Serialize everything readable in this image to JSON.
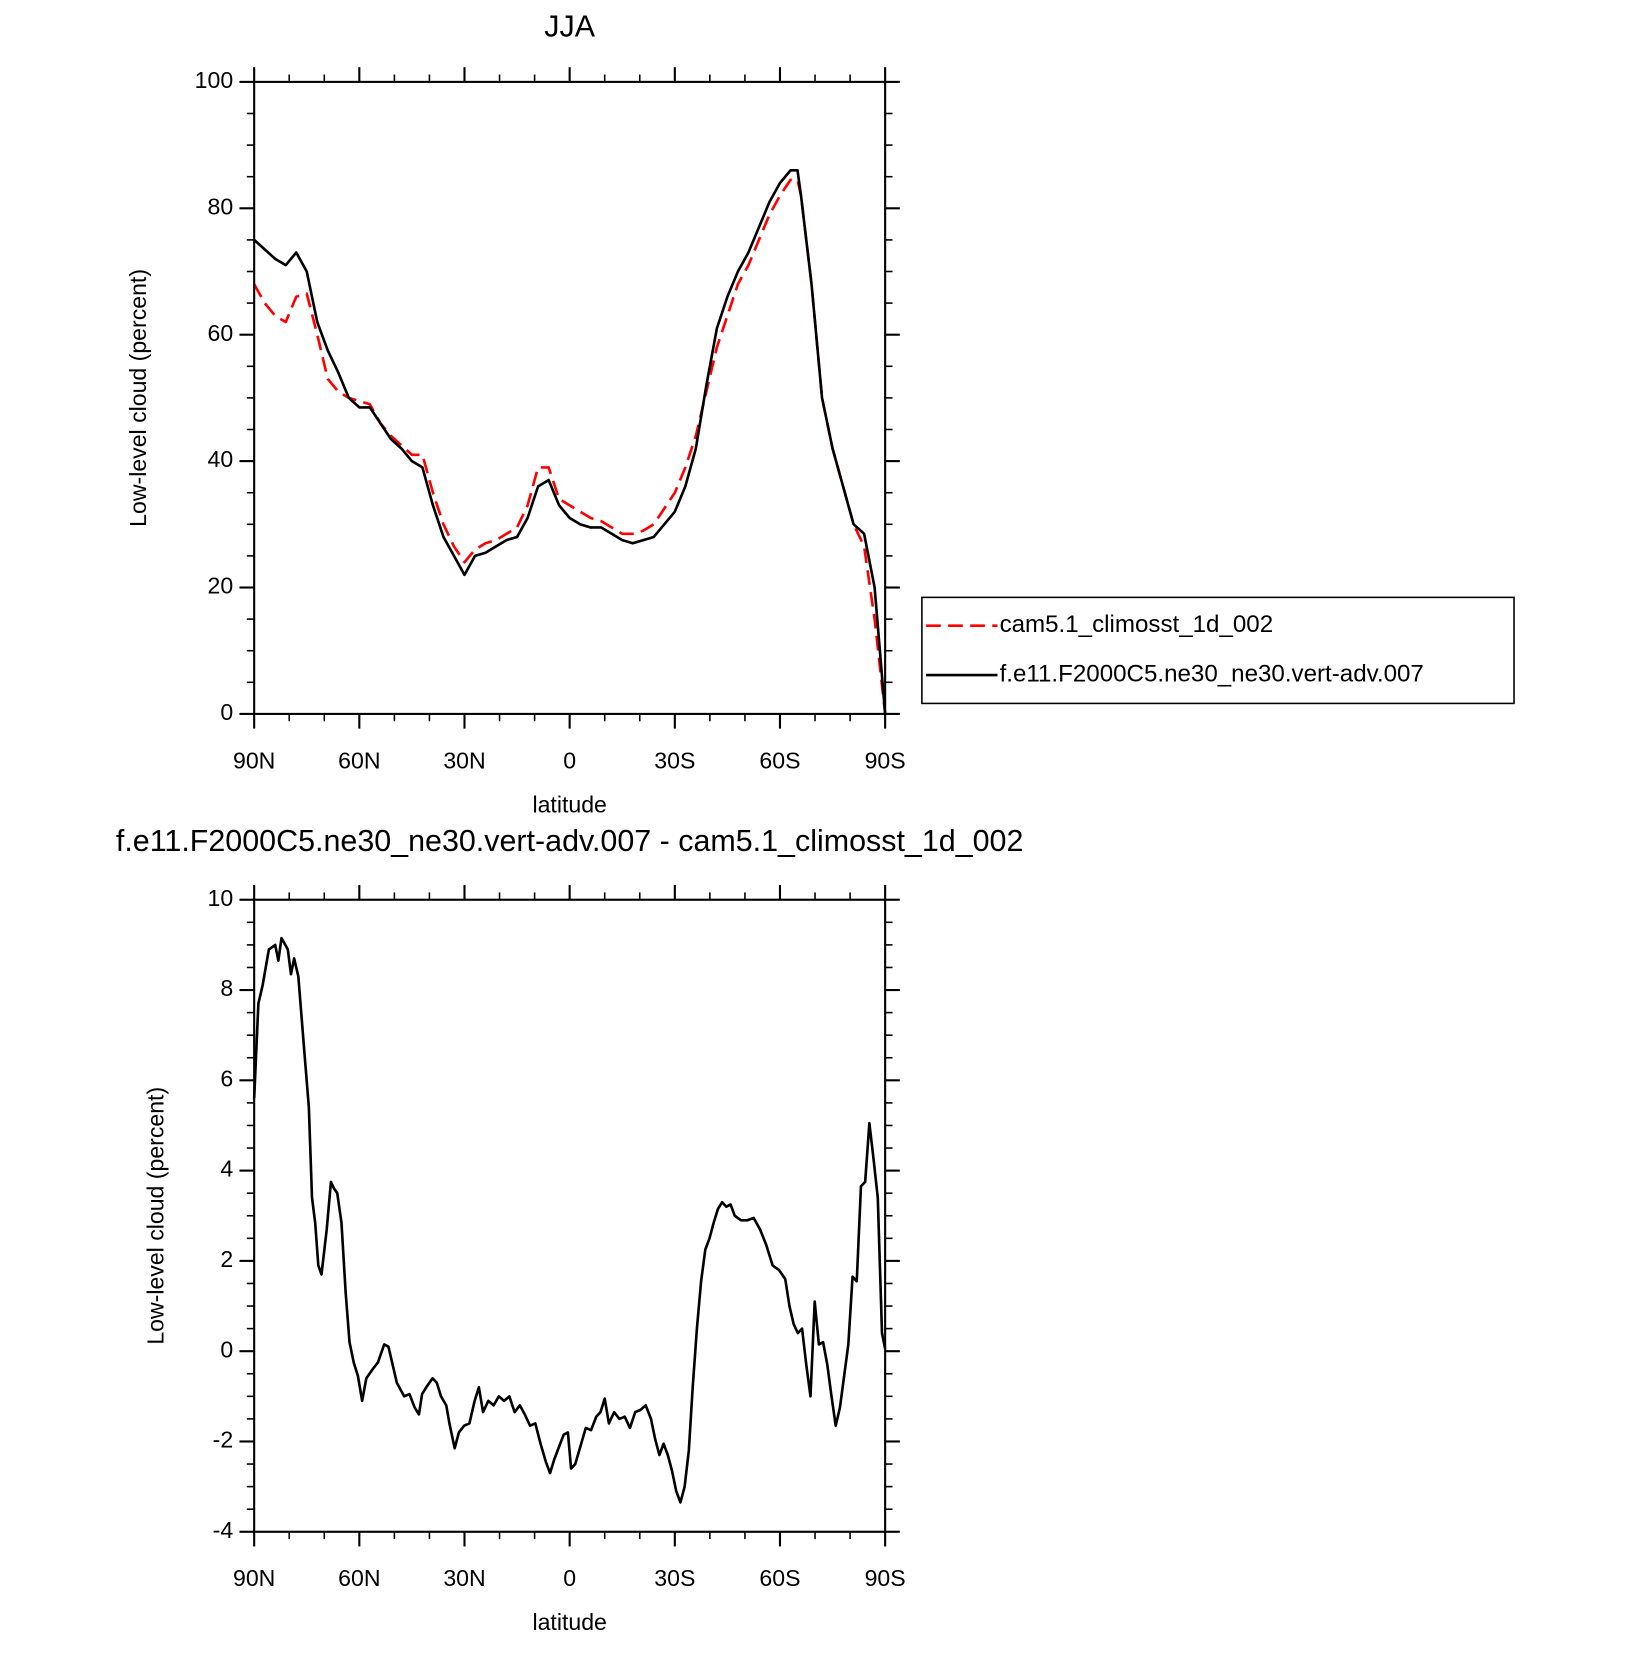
{
  "chart_data": [
    {
      "type": "line",
      "title": "JJA",
      "xlabel": "latitude",
      "ylabel": "Low-level cloud (percent)",
      "xlim": [
        90,
        -90
      ],
      "xticks": [
        {
          "value": 90,
          "label": "90N"
        },
        {
          "value": 60,
          "label": "60N"
        },
        {
          "value": 30,
          "label": "30N"
        },
        0,
        {
          "value": -30,
          "label": "30S"
        },
        {
          "value": -60,
          "label": "60S"
        },
        {
          "value": -90,
          "label": "90S"
        }
      ],
      "ylim": [
        0,
        100
      ],
      "yticks": [
        0,
        20,
        40,
        60,
        80,
        100
      ],
      "legend": "right",
      "x": [
        90,
        87,
        84,
        81,
        78,
        75,
        72,
        69,
        66,
        63,
        60,
        57,
        54,
        51,
        48,
        45,
        42,
        39,
        36,
        33,
        30,
        27,
        24,
        21,
        18,
        15,
        12,
        9,
        6,
        3,
        0,
        -3,
        -6,
        -9,
        -12,
        -15,
        -18,
        -21,
        -24,
        -27,
        -30,
        -33,
        -36,
        -39,
        -42,
        -45,
        -48,
        -51,
        -54,
        -57,
        -60,
        -63,
        -65,
        -66,
        -69,
        -72,
        -75,
        -78,
        -81,
        -84,
        -87,
        -90
      ],
      "series": [
        {
          "name": "cam5.1_climosst_1d_002",
          "color": "#ff0000",
          "dash": "dashed",
          "values": [
            68,
            65,
            63,
            62,
            66,
            66.5,
            60,
            53,
            51,
            50,
            49.5,
            49,
            46,
            44,
            42.5,
            41,
            41,
            35,
            30,
            26.5,
            24,
            26,
            27,
            27.5,
            28.5,
            29.5,
            33,
            39,
            39,
            34,
            33,
            32,
            31,
            30.5,
            29.5,
            28.5,
            28.5,
            29,
            30,
            32.5,
            35,
            39,
            44,
            51,
            58,
            63,
            68,
            71,
            75,
            79,
            82,
            84.5,
            84.5,
            82,
            68,
            50,
            42,
            36,
            30,
            26.5,
            15,
            0
          ]
        },
        {
          "name": "f.e11.F2000C5.ne30_ne30.vert-adv.007",
          "color": "#000000",
          "dash": "solid",
          "values": [
            75,
            73.5,
            72,
            71,
            73,
            70,
            62,
            57.5,
            54,
            50,
            48.5,
            48.5,
            46,
            43.5,
            42,
            40,
            39,
            33,
            28,
            25,
            22,
            25,
            25.5,
            26.5,
            27.5,
            28,
            31,
            36,
            37,
            33,
            31,
            30,
            29.5,
            29.5,
            28.5,
            27.5,
            27,
            27.5,
            28,
            30,
            32,
            36,
            42,
            52,
            61,
            66,
            70,
            73,
            77,
            81,
            84,
            86,
            86,
            82,
            68,
            50,
            42,
            36,
            30,
            28.5,
            20,
            0
          ]
        }
      ]
    },
    {
      "type": "line",
      "title": "f.e11.F2000C5.ne30_ne30.vert-adv.007 - cam5.1_climosst_1d_002",
      "xlabel": "latitude",
      "ylabel": "Low-level cloud (percent)",
      "xlim": [
        90,
        -90
      ],
      "xticks": [
        {
          "value": 90,
          "label": "90N"
        },
        {
          "value": 60,
          "label": "60N"
        },
        {
          "value": 30,
          "label": "30N"
        },
        0,
        {
          "value": -30,
          "label": "30S"
        },
        {
          "value": -60,
          "label": "60S"
        },
        {
          "value": -90,
          "label": "90S"
        }
      ],
      "ylim": [
        -4,
        10
      ],
      "yticks": [
        -4,
        -2,
        0,
        2,
        4,
        6,
        8,
        10
      ],
      "color": "#000000",
      "x": [
        90,
        88.8,
        87.6,
        85.8,
        84,
        83.1,
        82.2,
        80.4,
        79.5,
        78.6,
        77.4,
        75.6,
        74.4,
        73.5,
        72.6,
        71.7,
        70.8,
        69.3,
        68.1,
        67.2,
        66.3,
        65.1,
        63.9,
        62.8,
        61.6,
        60.4,
        59.2,
        58,
        56.2,
        54.7,
        52.9,
        51.7,
        50.5,
        49.3,
        47.2,
        45.7,
        44.2,
        43,
        42.1,
        40.9,
        39.1,
        37.9,
        36.7,
        35.2,
        34.3,
        32.8,
        31.6,
        30.1,
        28.6,
        27.1,
        25.9,
        24.7,
        23.2,
        21.7,
        20.2,
        18.7,
        17.2,
        15.7,
        14.2,
        12.8,
        11.3,
        9.8,
        8.3,
        6.8,
        5.6,
        4.4,
        3.2,
        1.7,
        0.5,
        -0.4,
        -1.6,
        -3.1,
        -4.6,
        -6.1,
        -7.6,
        -8.8,
        -10,
        -11.2,
        -12.7,
        -14.2,
        -15.7,
        -17.2,
        -18.7,
        -20.2,
        -21.7,
        -23.2,
        -24.4,
        -25.6,
        -26.8,
        -28,
        -29.2,
        -30.4,
        -31.6,
        -32.8,
        -34,
        -35.1,
        -36.3,
        -37.5,
        -38.7,
        -39.9,
        -41.1,
        -42.3,
        -43.5,
        -44.7,
        -45.9,
        -47.1,
        -48.9,
        -50.7,
        -52.5,
        -54.3,
        -56.1,
        -57.9,
        -59.7,
        -61.5,
        -62.7,
        -63.9,
        -65.1,
        -66.3,
        -67.5,
        -68.7,
        -69.9,
        -71.1,
        -72.3,
        -73.5,
        -74.7,
        -75.9,
        -77.1,
        -78.3,
        -79.5,
        -80.7,
        -81.9,
        -83.1,
        -84.3,
        -85.5,
        -86.7,
        -87.9,
        -89.1,
        -90
      ],
      "values": [
        5.6,
        7.7,
        8.1,
        8.9,
        9.0,
        8.65,
        9.15,
        8.9,
        8.35,
        8.7,
        8.3,
        6.55,
        5.4,
        3.4,
        2.85,
        1.9,
        1.7,
        2.7,
        3.75,
        3.6,
        3.5,
        2.85,
        1.3,
        0.2,
        -0.25,
        -0.55,
        -1.1,
        -0.6,
        -0.4,
        -0.25,
        0.15,
        0.1,
        -0.3,
        -0.7,
        -1.0,
        -0.95,
        -1.25,
        -1.4,
        -0.95,
        -0.8,
        -0.6,
        -0.7,
        -1.0,
        -1.2,
        -1.6,
        -2.15,
        -1.8,
        -1.65,
        -1.6,
        -1.1,
        -0.8,
        -1.35,
        -1.1,
        -1.2,
        -1.0,
        -1.1,
        -1.0,
        -1.35,
        -1.2,
        -1.4,
        -1.65,
        -1.6,
        -2.05,
        -2.45,
        -2.7,
        -2.4,
        -2.15,
        -1.85,
        -1.8,
        -2.6,
        -2.5,
        -2.1,
        -1.7,
        -1.75,
        -1.45,
        -1.35,
        -1.05,
        -1.6,
        -1.35,
        -1.5,
        -1.45,
        -1.7,
        -1.35,
        -1.3,
        -1.2,
        -1.5,
        -1.95,
        -2.3,
        -2.05,
        -2.3,
        -2.65,
        -3.1,
        -3.35,
        -3.0,
        -2.2,
        -0.8,
        0.5,
        1.55,
        2.25,
        2.5,
        2.85,
        3.15,
        3.3,
        3.2,
        3.25,
        3.0,
        2.9,
        2.9,
        2.95,
        2.7,
        2.35,
        1.9,
        1.8,
        1.6,
        1.0,
        0.6,
        0.4,
        0.5,
        -0.3,
        -1.0,
        1.1,
        0.15,
        0.2,
        -0.3,
        -1.0,
        -1.65,
        -1.25,
        -0.55,
        0.15,
        1.65,
        1.55,
        3.65,
        3.75,
        5.05,
        4.25,
        3.4,
        0.4,
        0.05
      ]
    }
  ]
}
